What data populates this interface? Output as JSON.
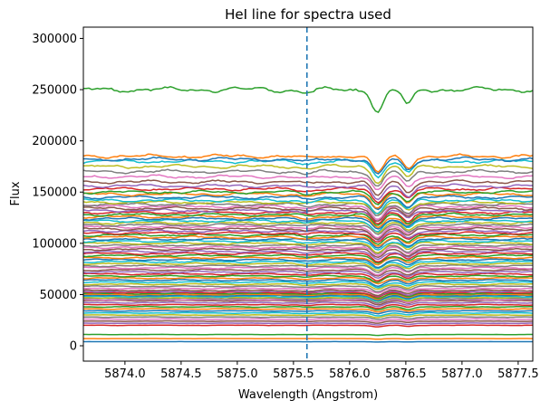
{
  "chart_data": {
    "type": "line",
    "title": "HeI line for spectra used",
    "xlabel": "Wavelength (Angstrom)",
    "ylabel": "Flux",
    "xlim": [
      5873.63,
      5877.63
    ],
    "ylim": [
      -15000,
      311000
    ],
    "x_ticks": [
      5874.0,
      5874.5,
      5875.0,
      5875.5,
      5876.0,
      5876.5,
      5877.0,
      5877.5
    ],
    "x_tick_labels": [
      "5874.0",
      "5874.5",
      "5875.0",
      "5875.5",
      "5876.0",
      "5876.5",
      "5877.0",
      "5877.5"
    ],
    "y_ticks": [
      0,
      50000,
      100000,
      150000,
      200000,
      250000,
      300000
    ],
    "y_tick_labels": [
      "0",
      "50000",
      "100000",
      "150000",
      "200000",
      "250000",
      "300000"
    ],
    "grid": false,
    "vertical_line": {
      "x": 5875.62,
      "style": "dashed",
      "color": "#1f77b4"
    },
    "palette": [
      "#1f77b4",
      "#ff7f0e",
      "#2ca02c",
      "#d62728",
      "#9467bd",
      "#8c564b",
      "#e377c2",
      "#7f7f7f",
      "#bcbd22",
      "#17becf"
    ],
    "absorption_features": [
      {
        "center": 5875.62,
        "relative_depth": 0.012,
        "width": 0.06
      },
      {
        "center": 5876.25,
        "relative_depth": 0.085,
        "width": 0.05
      },
      {
        "center": 5876.52,
        "relative_depth": 0.06,
        "width": 0.045
      }
    ],
    "series_levels": [
      4000,
      7000,
      11000,
      20000,
      22000,
      24000,
      26000,
      28000,
      30000,
      32000,
      34000,
      36000,
      38000,
      40000,
      42000,
      44000,
      45000,
      46000,
      47000,
      48000,
      49000,
      50000,
      51000,
      52000,
      53000,
      54000,
      56000,
      58000,
      60000,
      62000,
      64000,
      66000,
      68000,
      70000,
      72000,
      74000,
      76000,
      78000,
      80000,
      82000,
      84000,
      86000,
      88000,
      90000,
      92000,
      94000,
      96000,
      98000,
      100000,
      102000,
      104000,
      106000,
      108000,
      110000,
      112000,
      114000,
      116000,
      118000,
      120000,
      122000,
      124000,
      126000,
      128000,
      130000,
      132000,
      134000,
      136000,
      138000,
      140000,
      142000,
      145000,
      148000,
      150000,
      153000,
      156000,
      160000,
      165000,
      170000,
      175000,
      180000,
      182000,
      185000,
      250000
    ]
  }
}
